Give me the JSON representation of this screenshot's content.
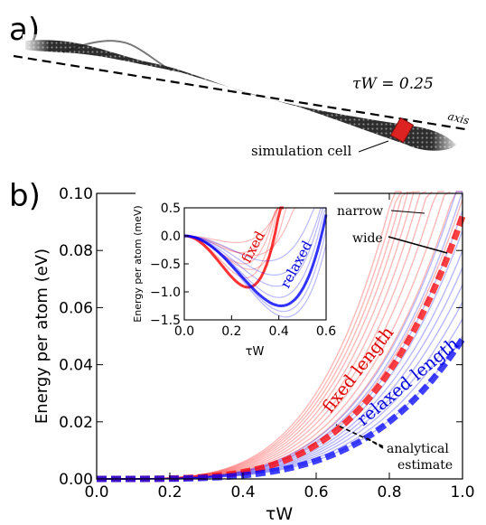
{
  "panel_a": {
    "label": "a)",
    "parameter_label": "τW = 0.25",
    "axis_label": "axis",
    "cell_label": "simulation cell",
    "colors": {
      "ribbon": "#3a3a3a",
      "cell": "#dd2222"
    }
  },
  "panel_b": {
    "label": "b)",
    "annotations": {
      "narrow": "narrow",
      "wide": "wide",
      "fixed_length": "fixed length",
      "relaxed_length": "relaxed length",
      "analytical_1": "analytical",
      "analytical_2": "estimate"
    }
  },
  "chart_data": [
    {
      "type": "line",
      "xlabel": "τW",
      "ylabel": "Energy per atom (eV)",
      "xlim": [
        0.0,
        1.0
      ],
      "ylim": [
        0.0,
        0.1
      ],
      "xticks": [
        "0.0",
        "0.2",
        "0.4",
        "0.6",
        "0.8",
        "1.0"
      ],
      "yticks": [
        "0.00",
        "0.02",
        "0.04",
        "0.06",
        "0.08",
        "0.10"
      ],
      "grid": false,
      "series_groups": [
        {
          "group": "fixed length",
          "color": "#ff0000",
          "model": "E = A·(τW)^4",
          "A_values": [
            0.098,
            0.11,
            0.122,
            0.136,
            0.15,
            0.164,
            0.178,
            0.192,
            0.205,
            0.218,
            0.232
          ]
        },
        {
          "group": "relaxed length",
          "color": "#0000ff",
          "model": "E = A·(τW)^4",
          "A_values": [
            0.05,
            0.056,
            0.062,
            0.068,
            0.074,
            0.08,
            0.087,
            0.094,
            0.101,
            0.108
          ]
        }
      ],
      "dashed_estimates": [
        {
          "group": "fixed length",
          "color": "#ff0000",
          "A": 0.092
        },
        {
          "group": "relaxed length",
          "color": "#0000ff",
          "A": 0.049
        }
      ]
    },
    {
      "type": "line",
      "xlabel": "τW",
      "ylabel": "Energy per atom (meV)",
      "xlim": [
        0.0,
        0.6
      ],
      "ylim": [
        -1.5,
        0.5
      ],
      "xticks": [
        "0.0",
        "0.2",
        "0.4",
        "0.6"
      ],
      "yticks": [
        "0.5",
        "0.0",
        "−0.5",
        "−1.0",
        "−1.5"
      ],
      "grid": false,
      "labels": {
        "fixed": "fixed",
        "relaxed": "relaxed"
      },
      "series_groups": [
        {
          "group": "fixed",
          "color": "#ff0000",
          "minima": [
            [
              0.22,
              -0.12
            ],
            [
              0.24,
              -0.3
            ],
            [
              0.25,
              -0.5
            ],
            [
              0.26,
              -0.75
            ],
            [
              0.27,
              -0.92
            ],
            [
              0.28,
              -0.6
            ],
            [
              0.29,
              -0.35
            ]
          ]
        },
        {
          "group": "relaxed",
          "color": "#0000ff",
          "minima": [
            [
              0.35,
              -0.45
            ],
            [
              0.38,
              -0.7
            ],
            [
              0.39,
              -0.9
            ],
            [
              0.4,
              -1.1
            ],
            [
              0.41,
              -1.25
            ],
            [
              0.42,
              -1.35
            ],
            [
              0.43,
              -1.45
            ]
          ]
        }
      ]
    }
  ]
}
